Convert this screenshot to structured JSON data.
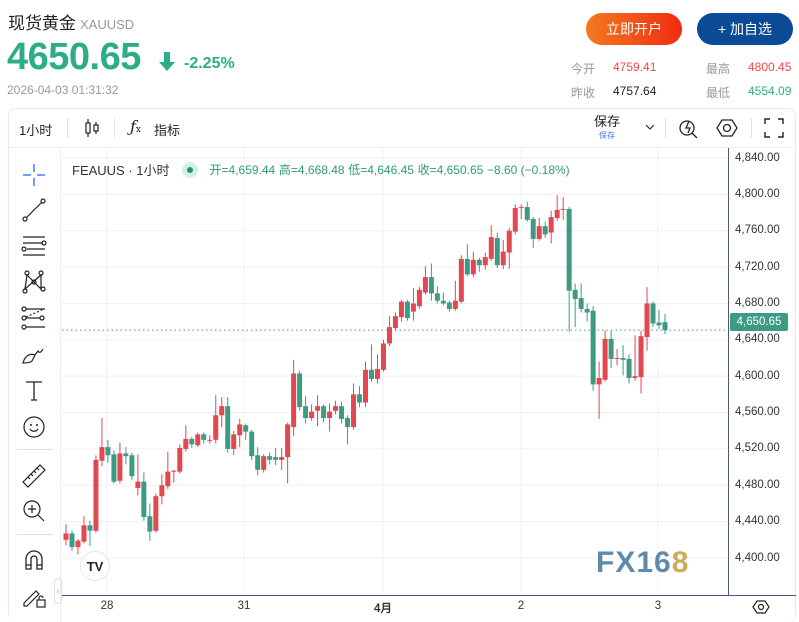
{
  "header": {
    "name": "现货黄金",
    "symbol": "XAUUSD",
    "price": "4650.65",
    "change_pct": "-2.25%",
    "timestamp": "2026-04-03 01:31:32",
    "direction_icon": "arrow-down-icon"
  },
  "actions": {
    "open_account": "立即开户",
    "add_watch": "+ 加自选"
  },
  "stats": {
    "open_label": "今开",
    "open": "4759.41",
    "high_label": "最高",
    "high": "4800.45",
    "prev_label": "昨收",
    "prev": "4757.64",
    "low_label": "最低",
    "low": "4554.09"
  },
  "toolbar": {
    "interval": "1小时",
    "indicators": "指标",
    "save": "保存",
    "save_sub": "保存"
  },
  "legend": {
    "symbol": "FEAUUS · 1小时",
    "open": "开=4,659.44",
    "high": "高=4,668.48",
    "low": "低=4,646.45",
    "close": "收=4,650.65",
    "change": "−8.60 (−0.18%)"
  },
  "watermark": "FX168",
  "colors": {
    "up": "#e3474f",
    "down": "#3d9b84",
    "accent": "#2bae86"
  },
  "chart_data": {
    "type": "candlestick",
    "interval": "1小时",
    "ylim": [
      4390,
      4850
    ],
    "y_ticks": [
      "4,840.00",
      "4,800.00",
      "4,760.00",
      "4,720.00",
      "4,680.00",
      "4,640.00",
      "4,600.00",
      "4,560.00",
      "4,520.00",
      "4,480.00",
      "4,440.00",
      "4,400.00"
    ],
    "x_ticks": [
      "28",
      "31",
      "4月",
      "2",
      "3"
    ],
    "last_price": "4,650.65",
    "ohlc": [
      [
        4420,
        4437,
        4414,
        4427
      ],
      [
        4427,
        4430,
        4408,
        4412
      ],
      [
        4412,
        4421,
        4404,
        4419
      ],
      [
        4418,
        4446,
        4416,
        4436
      ],
      [
        4436,
        4441,
        4413,
        4430
      ],
      [
        4430,
        4513,
        4428,
        4508
      ],
      [
        4507,
        4554,
        4501,
        4522
      ],
      [
        4522,
        4530,
        4505,
        4513
      ],
      [
        4514,
        4518,
        4482,
        4484
      ],
      [
        4485,
        4527,
        4482,
        4515
      ],
      [
        4515,
        4522,
        4503,
        4512
      ],
      [
        4513,
        4516,
        4486,
        4490
      ],
      [
        4477,
        4514,
        4469,
        4484
      ],
      [
        4484,
        4494,
        4441,
        4445
      ],
      [
        4446,
        4460,
        4419,
        4429
      ],
      [
        4430,
        4471,
        4428,
        4468
      ],
      [
        4468,
        4492,
        4459,
        4480
      ],
      [
        4479,
        4517,
        4476,
        4495
      ],
      [
        4495,
        4497,
        4483,
        4496
      ],
      [
        4495,
        4525,
        4493,
        4521
      ],
      [
        4520,
        4546,
        4517,
        4531
      ],
      [
        4531,
        4533,
        4521,
        4525
      ],
      [
        4524,
        4538,
        4522,
        4536
      ],
      [
        4536,
        4538,
        4526,
        4530
      ],
      [
        4530,
        4535,
        4526,
        4530
      ],
      [
        4530,
        4579,
        4526,
        4557
      ],
      [
        4557,
        4577,
        4544,
        4567
      ],
      [
        4567,
        4577,
        4516,
        4520
      ],
      [
        4520,
        4540,
        4513,
        4536
      ],
      [
        4535,
        4553,
        4522,
        4547
      ],
      [
        4546,
        4548,
        4530,
        4539
      ],
      [
        4539,
        4541,
        4508,
        4512
      ],
      [
        4513,
        4522,
        4491,
        4497
      ],
      [
        4497,
        4514,
        4494,
        4512
      ],
      [
        4512,
        4516,
        4503,
        4508
      ],
      [
        4511,
        4521,
        4502,
        4508
      ],
      [
        4508,
        4521,
        4497,
        4511
      ],
      [
        4511,
        4549,
        4482,
        4547
      ],
      [
        4544,
        4618,
        4534,
        4603
      ],
      [
        4603,
        4606,
        4562,
        4566
      ],
      [
        4567,
        4578,
        4548,
        4554
      ],
      [
        4554,
        4569,
        4551,
        4561
      ],
      [
        4562,
        4579,
        4545,
        4567
      ],
      [
        4567,
        4569,
        4549,
        4554
      ],
      [
        4554,
        4570,
        4539,
        4561
      ],
      [
        4562,
        4573,
        4558,
        4567
      ],
      [
        4567,
        4572,
        4548,
        4553
      ],
      [
        4554,
        4557,
        4525,
        4544
      ],
      [
        4544,
        4592,
        4541,
        4580
      ],
      [
        4580,
        4589,
        4566,
        4571
      ],
      [
        4571,
        4616,
        4566,
        4607
      ],
      [
        4607,
        4635,
        4594,
        4597
      ],
      [
        4597,
        4624,
        4592,
        4608
      ],
      [
        4607,
        4640,
        4605,
        4636
      ],
      [
        4636,
        4666,
        4633,
        4654
      ],
      [
        4653,
        4670,
        4650,
        4666
      ],
      [
        4665,
        4684,
        4660,
        4682
      ],
      [
        4682,
        4684,
        4661,
        4664
      ],
      [
        4671,
        4697,
        4661,
        4680
      ],
      [
        4677,
        4698,
        4674,
        4695
      ],
      [
        4692,
        4721,
        4690,
        4709
      ],
      [
        4709,
        4724,
        4683,
        4691
      ],
      [
        4691,
        4699,
        4680,
        4683
      ],
      [
        4683,
        4692,
        4678,
        4680
      ],
      [
        4681,
        4683,
        4671,
        4674
      ],
      [
        4674,
        4705,
        4672,
        4683
      ],
      [
        4682,
        4733,
        4680,
        4729
      ],
      [
        4729,
        4745,
        4710,
        4712
      ],
      [
        4712,
        4737,
        4709,
        4728
      ],
      [
        4728,
        4730,
        4715,
        4722
      ],
      [
        4722,
        4736,
        4717,
        4731
      ],
      [
        4729,
        4766,
        4727,
        4753
      ],
      [
        4752,
        4758,
        4719,
        4722
      ],
      [
        4722,
        4750,
        4718,
        4737
      ],
      [
        4736,
        4763,
        4718,
        4760
      ],
      [
        4759,
        4789,
        4756,
        4785
      ],
      [
        4786,
        4789,
        4773,
        4786
      ],
      [
        4786,
        4792,
        4770,
        4772
      ],
      [
        4773,
        4775,
        4741,
        4751
      ],
      [
        4751,
        4774,
        4749,
        4765
      ],
      [
        4765,
        4770,
        4752,
        4756
      ],
      [
        4758,
        4782,
        4746,
        4775
      ],
      [
        4774,
        4799,
        4771,
        4783
      ],
      [
        4784,
        4797,
        4772,
        4784
      ],
      [
        4784,
        4786,
        4649,
        4694
      ],
      [
        4695,
        4702,
        4654,
        4685
      ],
      [
        4686,
        4702,
        4670,
        4674
      ],
      [
        4674,
        4680,
        4660,
        4670
      ],
      [
        4672,
        4677,
        4584,
        4591
      ],
      [
        4591,
        4616,
        4553,
        4598
      ],
      [
        4596,
        4650,
        4594,
        4641
      ],
      [
        4641,
        4650,
        4609,
        4619
      ],
      [
        4620,
        4630,
        4612,
        4620
      ],
      [
        4620,
        4634,
        4601,
        4618
      ],
      [
        4619,
        4624,
        4592,
        4598
      ],
      [
        4598,
        4645,
        4595,
        4600
      ],
      [
        4599,
        4650,
        4581,
        4644
      ],
      [
        4643,
        4698,
        4628,
        4680
      ],
      [
        4680,
        4682,
        4654,
        4658
      ],
      [
        4659,
        4673,
        4652,
        4656
      ],
      [
        4659.44,
        4668.48,
        4646.45,
        4650.65
      ]
    ]
  }
}
